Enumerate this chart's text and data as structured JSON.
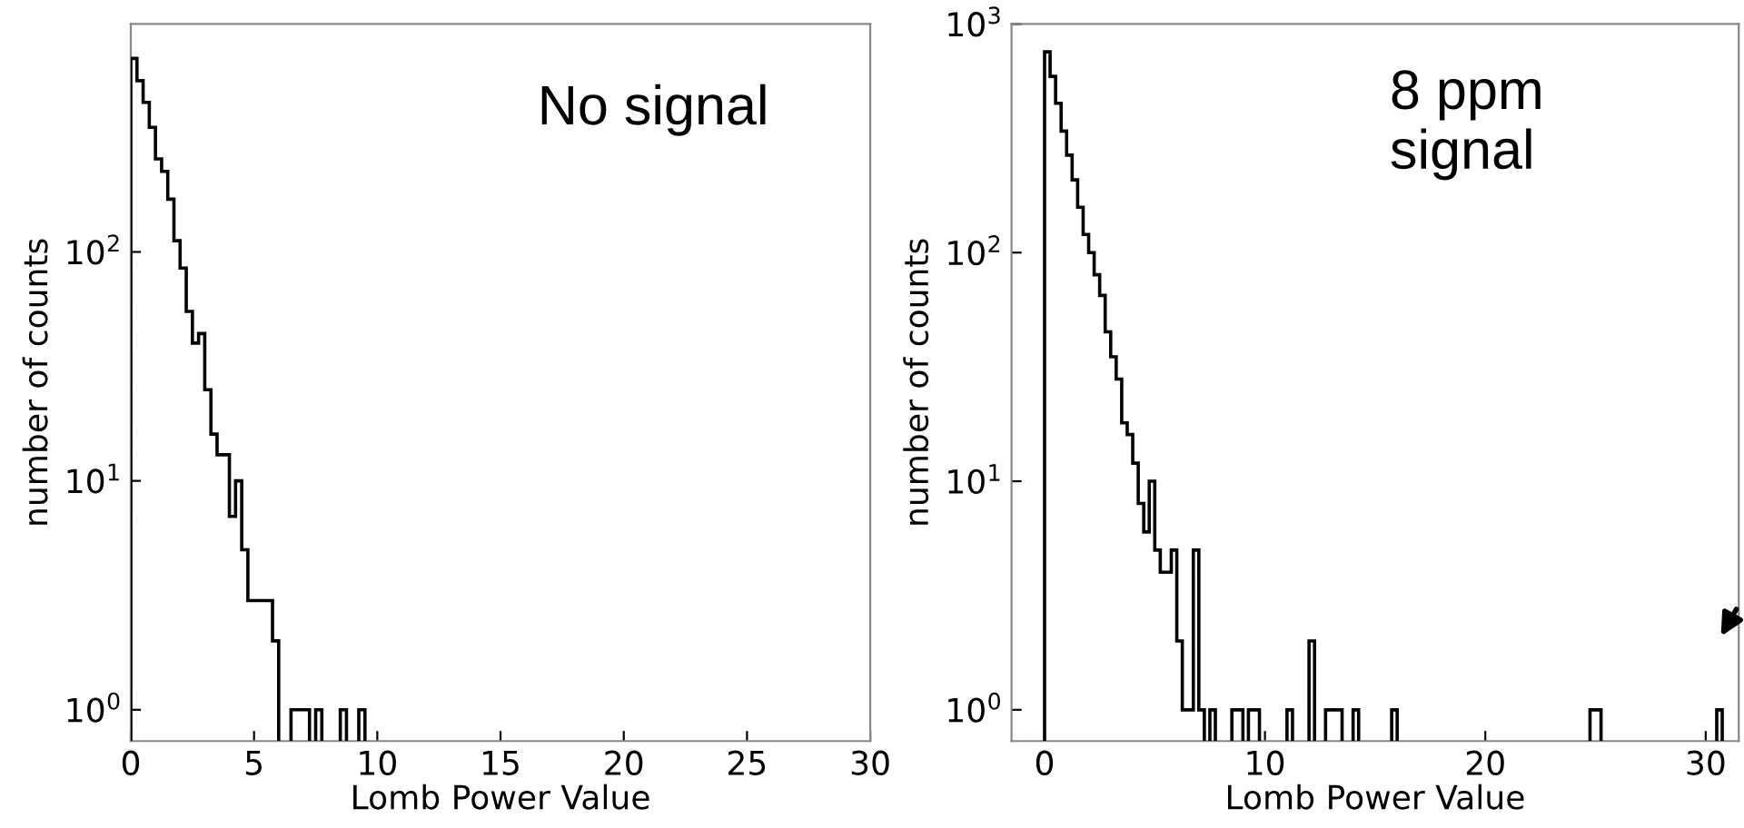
{
  "chart_data": [
    {
      "type": "histogram",
      "xlabel": "Lomb Power Value",
      "ylabel": "number of counts",
      "annotations": [
        "No signal"
      ],
      "color": "#000000",
      "log": true,
      "grid": false,
      "bins": [
        0,
        0.25,
        0.5,
        0.75,
        1.0,
        1.25,
        1.5,
        1.75,
        2.0,
        2.25,
        2.5,
        2.75,
        3.0,
        3.25,
        3.5,
        3.75,
        4.0,
        4.25,
        4.5,
        4.75,
        5.0,
        5.25,
        5.5,
        5.75,
        6.0,
        6.5,
        6.75,
        7.0,
        7.25,
        7.5,
        7.75,
        8.5,
        8.75,
        9.25,
        9.5
      ],
      "values": [
        700,
        560,
        450,
        350,
        255,
        225,
        170,
        112,
        85,
        55,
        40,
        44,
        25,
        16,
        13,
        13,
        7,
        10,
        5,
        3,
        3,
        3,
        3,
        2,
        null,
        1,
        1,
        1,
        null,
        1,
        null,
        1,
        null,
        1
      ],
      "xlim": [
        0,
        30
      ],
      "xticks": [
        0,
        5,
        10,
        15,
        20,
        25,
        30
      ],
      "ylim": [
        0.73,
        990
      ],
      "yticks": [
        {
          "value": 1,
          "label": "10$^{0}$"
        },
        {
          "value": 10,
          "label": "10$^{1}$"
        },
        {
          "value": 100,
          "label": "10$^{2}$"
        }
      ]
    },
    {
      "type": "histogram",
      "xlabel": "Lomb Power Value",
      "ylabel": "number of counts",
      "annotations": [
        "8 ppm\nsignal"
      ],
      "color": "#000000",
      "log": true,
      "grid": false,
      "bins": [
        0,
        0.25,
        0.5,
        0.75,
        1.0,
        1.25,
        1.5,
        1.75,
        2.0,
        2.25,
        2.5,
        2.75,
        3.0,
        3.25,
        3.5,
        3.75,
        4.0,
        4.25,
        4.5,
        4.75,
        5.0,
        5.25,
        5.5,
        5.75,
        6.0,
        6.25,
        6.5,
        6.75,
        7.0,
        7.25,
        7.5,
        7.75,
        8.5,
        8.75,
        9.0,
        9.25,
        9.5,
        9.75,
        11.0,
        11.25,
        12.0,
        12.25,
        12.75,
        13.0,
        13.25,
        13.5,
        14.0,
        14.25,
        15.75,
        16.0,
        24.75,
        25.0,
        25.25,
        30.5,
        30.75
      ],
      "values": [
        755,
        590,
        450,
        340,
        267,
        208,
        158,
        120,
        100,
        80,
        65,
        45,
        35,
        28,
        18,
        16,
        12,
        8,
        6,
        10,
        5,
        4,
        4,
        5,
        2,
        1,
        1,
        5,
        1,
        null,
        1,
        null,
        1,
        1,
        null,
        1,
        1,
        null,
        1,
        null,
        2,
        null,
        1,
        1,
        1,
        null,
        1,
        null,
        1,
        null,
        1,
        1,
        null,
        1
      ],
      "xlim": [
        -1.5,
        31.5
      ],
      "xticks": [
        0,
        10,
        20,
        30
      ],
      "ylim": [
        0.73,
        1000
      ],
      "yticks": [
        {
          "value": 1,
          "label": "10$^{0}$"
        },
        {
          "value": 10,
          "label": "10$^{1}$"
        },
        {
          "value": 100,
          "label": "10$^{2}$"
        },
        {
          "value": 1000,
          "label": "10$^{3}$"
        }
      ]
    }
  ]
}
